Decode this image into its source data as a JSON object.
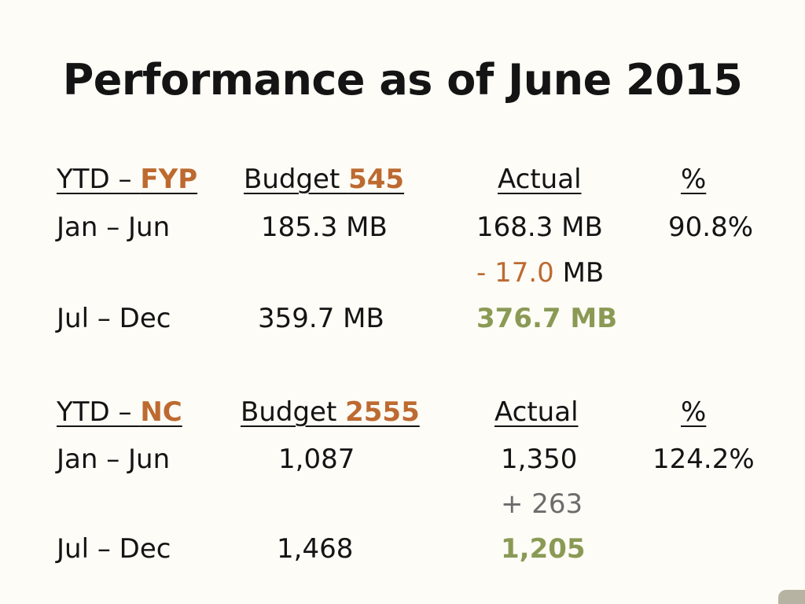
{
  "title": "Performance as of June 2015",
  "fyp": {
    "header": {
      "ytd_prefix": "YTD – ",
      "ytd_highlight": "FYP",
      "budget_prefix": "Budget ",
      "budget_highlight": "545",
      "actual": "Actual",
      "percent": "%"
    },
    "rows": [
      {
        "period": "Jan – Jun",
        "budget": "185.3 MB",
        "actual": "168.3 MB",
        "percent": "90.8%"
      },
      {
        "period": "",
        "budget": "",
        "actual_diff_value": "- 17.0",
        "actual_diff_unit": " MB",
        "percent": ""
      },
      {
        "period": "Jul – Dec",
        "budget": "359.7 MB",
        "actual": "376.7 MB",
        "percent": ""
      }
    ]
  },
  "nc": {
    "header": {
      "ytd_prefix": "YTD – ",
      "ytd_highlight": "NC",
      "budget_prefix": "Budget ",
      "budget_highlight": "2555",
      "actual": "Actual",
      "percent": "%"
    },
    "rows": [
      {
        "period": "Jan – Jun",
        "budget": "1,087",
        "actual": "1,350",
        "percent": "124.2%"
      },
      {
        "period": "",
        "budget": "",
        "actual_diff": "+ 263",
        "percent": ""
      },
      {
        "period": "Jul – Dec",
        "budget": "1,468",
        "actual": "1,205",
        "percent": ""
      }
    ]
  }
}
